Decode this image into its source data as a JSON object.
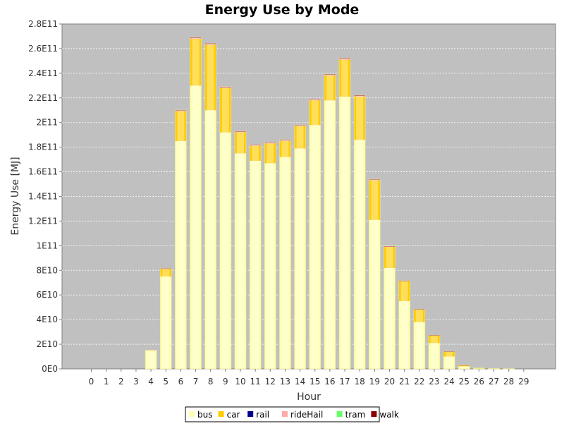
{
  "chart_data": {
    "type": "bar",
    "stacked": true,
    "title": "Energy Use by Mode",
    "xlabel": "Hour",
    "ylabel": "Energy Use [MJ]",
    "ylim": [
      0,
      280000000000
    ],
    "y_ticks": [
      0,
      20000000000,
      40000000000,
      60000000000,
      80000000000,
      100000000000,
      120000000000,
      140000000000,
      160000000000,
      180000000000,
      200000000000,
      220000000000,
      240000000000,
      260000000000,
      280000000000
    ],
    "y_tick_labels": [
      "0E0",
      "2E10",
      "4E10",
      "6E10",
      "8E10",
      "1E11",
      "1.2E11",
      "1.4E11",
      "1.6E11",
      "1.8E11",
      "2E11",
      "2.2E11",
      "2.4E11",
      "2.6E11",
      "2.8E11"
    ],
    "categories": [
      "0",
      "1",
      "2",
      "3",
      "4",
      "5",
      "6",
      "7",
      "8",
      "9",
      "10",
      "11",
      "12",
      "13",
      "14",
      "15",
      "16",
      "17",
      "18",
      "19",
      "20",
      "21",
      "22",
      "23",
      "24",
      "25",
      "26",
      "27",
      "28",
      "29"
    ],
    "grid": true,
    "legend_position": "bottom",
    "series": [
      {
        "name": "bus",
        "color": "#ffffb0",
        "values": [
          0,
          0,
          0,
          0,
          15000000000,
          75000000000,
          185000000000,
          230000000000,
          210000000000,
          192000000000,
          175000000000,
          169000000000,
          167000000000,
          172000000000,
          179000000000,
          198000000000,
          218000000000,
          221000000000,
          186000000000,
          121000000000,
          82000000000,
          55000000000,
          38000000000,
          21000000000,
          10000000000,
          2000000000,
          500000000,
          200000000,
          100000000,
          0
        ]
      },
      {
        "name": "car",
        "color": "#ffcc00",
        "values": [
          0,
          0,
          0,
          0,
          200000000,
          6000000000,
          24000000000,
          38000000000,
          53000000000,
          36000000000,
          17000000000,
          12000000000,
          16000000000,
          13000000000,
          18000000000,
          20000000000,
          20000000000,
          30000000000,
          35000000000,
          32000000000,
          17000000000,
          16000000000,
          10000000000,
          6000000000,
          4000000000,
          1000000000,
          300000000,
          200000000,
          100000000,
          0
        ]
      },
      {
        "name": "rail",
        "color": "#00008b",
        "values": [
          0,
          0,
          0,
          0,
          0,
          0,
          0,
          0,
          0,
          0,
          0,
          0,
          0,
          0,
          0,
          0,
          0,
          0,
          0,
          0,
          0,
          0,
          0,
          0,
          0,
          0,
          0,
          0,
          0,
          0
        ]
      },
      {
        "name": "rideHail",
        "color": "#ffaaaa",
        "values": [
          0,
          0,
          0,
          0,
          100000000,
          500000000,
          800000000,
          900000000,
          900000000,
          800000000,
          700000000,
          700000000,
          700000000,
          700000000,
          700000000,
          800000000,
          800000000,
          900000000,
          800000000,
          700000000,
          500000000,
          400000000,
          300000000,
          200000000,
          100000000,
          50000000,
          0,
          0,
          0,
          0
        ]
      },
      {
        "name": "tram",
        "color": "#66ff66",
        "values": [
          0,
          0,
          0,
          0,
          0,
          0,
          0,
          0,
          0,
          0,
          0,
          0,
          0,
          0,
          0,
          0,
          0,
          0,
          0,
          0,
          0,
          0,
          0,
          0,
          0,
          0,
          0,
          0,
          0,
          0
        ]
      },
      {
        "name": "walk",
        "color": "#8b0000",
        "values": [
          0,
          0,
          0,
          0,
          0,
          100000000,
          300000000,
          400000000,
          400000000,
          400000000,
          300000000,
          300000000,
          300000000,
          300000000,
          300000000,
          300000000,
          400000000,
          400000000,
          400000000,
          300000000,
          300000000,
          200000000,
          200000000,
          100000000,
          100000000,
          50000000,
          0,
          0,
          0,
          0
        ]
      }
    ]
  }
}
